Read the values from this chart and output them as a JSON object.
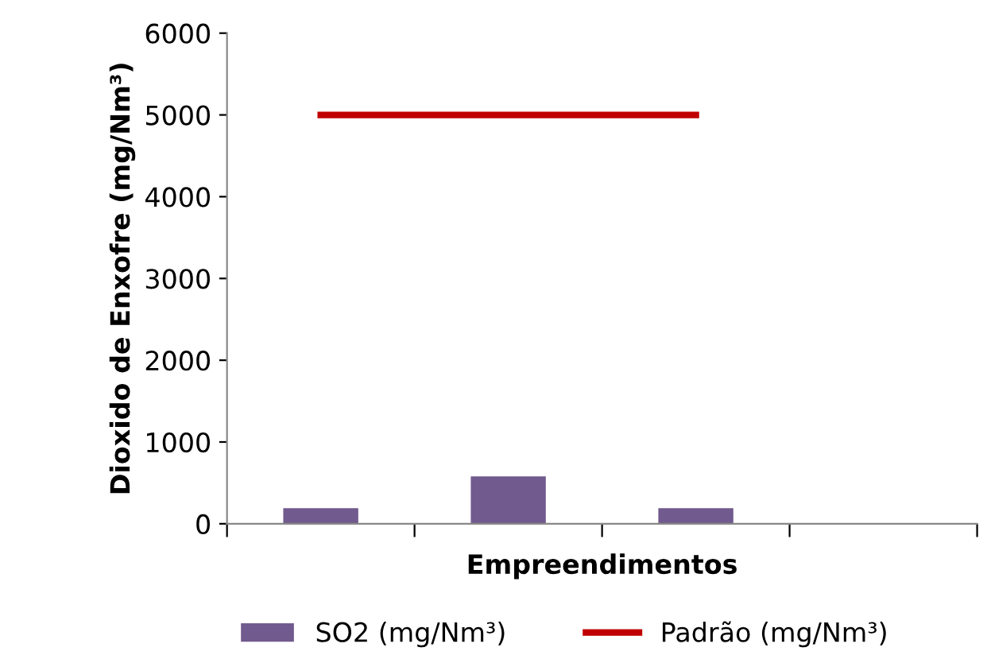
{
  "chart_data": {
    "type": "bar",
    "xlabel": "Empreendimentos",
    "ylabel": "Dioxido de Enxofre (mg/Nm³)",
    "categories": [
      null,
      null,
      null,
      null
    ],
    "series": [
      {
        "name": "SO2 (mg/Nm³)",
        "color": "#715a8e",
        "values": [
          190,
          580,
          190,
          null
        ]
      },
      {
        "name": "Padrão (mg/Nm³)",
        "type": "line",
        "color": "#c00000",
        "values": [
          5000,
          5000,
          5000,
          null
        ]
      }
    ],
    "ylim": [
      0,
      6000
    ],
    "yticks": [
      0,
      1000,
      2000,
      3000,
      4000,
      5000,
      6000
    ],
    "grid": false,
    "legend": "bottom"
  }
}
